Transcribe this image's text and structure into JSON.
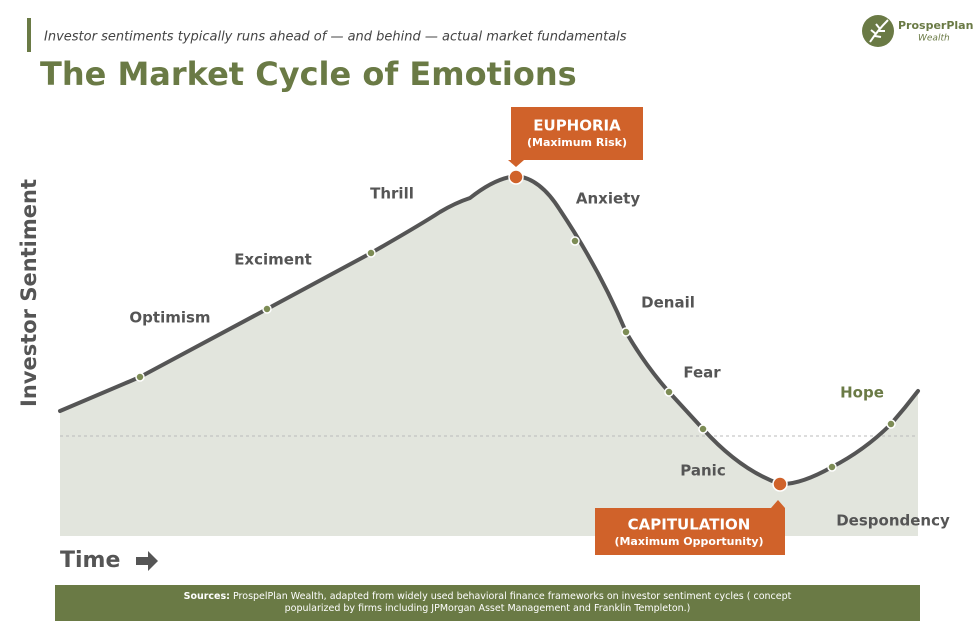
{
  "header": {
    "subtitle": "Investor sentiments typically runs ahead of — and behind — actual market fundamentals",
    "title": "The Market Cycle of Emotions"
  },
  "logo": {
    "name": "ProsperPlan",
    "tagline": "Wealth"
  },
  "axes": {
    "y_label": "Investor Sentiment",
    "x_label": "Time"
  },
  "stages": [
    "Optimism",
    "Exciment",
    "Thrill",
    "Anxiety",
    "Denail",
    "Fear",
    "Panic",
    "Despondency",
    "Hope"
  ],
  "callouts": {
    "peak": {
      "title": "EUPHORIA",
      "subtitle": "(Maximum Risk)"
    },
    "trough": {
      "title": "CAPITULATION",
      "subtitle": "(Maximum Opportunity)"
    }
  },
  "sources": {
    "label": "Sources:",
    "text": "ProspelPlan Wealth, adapted from widely used behavioral finance frameworks on investor sentiment cycles ( concept popularized by firms including JPMorgan Asset Management and Franklin Templeton.)"
  }
}
